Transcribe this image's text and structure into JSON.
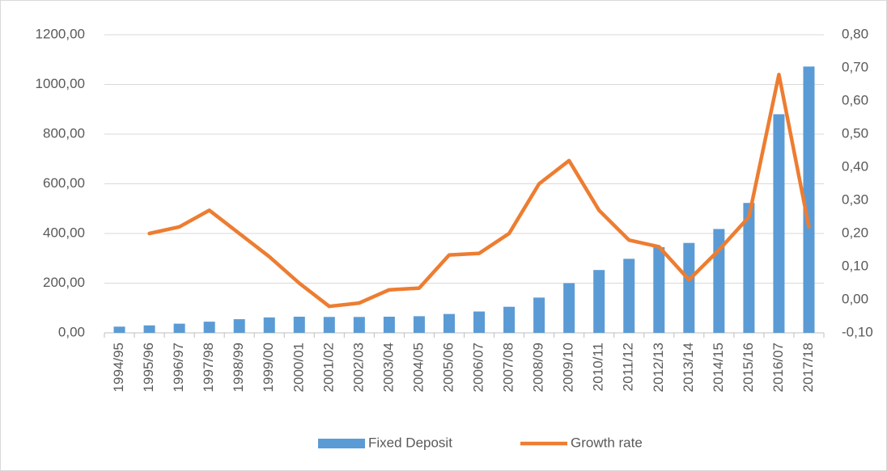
{
  "chart_data": {
    "type": "bar-line",
    "categories": [
      "1994/95",
      "1995/96",
      "1996/97",
      "1997/98",
      "1998/99",
      "1999/00",
      "2000/01",
      "2001/02",
      "2002/03",
      "2003/04",
      "2004/05",
      "2005/06",
      "2006/07",
      "2007/08",
      "2008/09",
      "2009/10",
      "2010/11",
      "2011/12",
      "2012/13",
      "2013/14",
      "2014/15",
      "2015/16",
      "2016/07",
      "2017/18"
    ],
    "series": [
      {
        "name": "Fixed Deposit",
        "type": "bar",
        "color": "#5b9bd5",
        "axis": "y",
        "values": [
          25,
          30,
          37,
          45,
          55,
          62,
          65,
          64,
          64,
          65,
          67,
          76,
          86,
          105,
          142,
          200,
          253,
          298,
          345,
          362,
          418,
          523,
          880,
          1072
        ]
      },
      {
        "name": "Growth rate",
        "type": "line",
        "color": "#ed7d31",
        "axis": "y2",
        "values": [
          null,
          0.2,
          0.22,
          0.27,
          0.2,
          0.13,
          0.05,
          -0.02,
          -0.01,
          0.03,
          0.035,
          0.135,
          0.14,
          0.2,
          0.35,
          0.42,
          0.27,
          0.18,
          0.16,
          0.06,
          0.15,
          0.25,
          0.68,
          0.22
        ]
      }
    ],
    "ylim": [
      0,
      1200
    ],
    "yticks": [
      {
        "value": 0,
        "label": "0,00"
      },
      {
        "value": 200,
        "label": "200,00"
      },
      {
        "value": 400,
        "label": "400,00"
      },
      {
        "value": 600,
        "label": "600,00"
      },
      {
        "value": 800,
        "label": "800,00"
      },
      {
        "value": 1000,
        "label": "1000,00"
      },
      {
        "value": 1200,
        "label": "1200,00"
      }
    ],
    "y2lim": [
      -0.1,
      0.8
    ],
    "y2ticks": [
      {
        "value": -0.1,
        "label": "-0,10"
      },
      {
        "value": 0,
        "label": "0,00"
      },
      {
        "value": 0.1,
        "label": "0,10"
      },
      {
        "value": 0.2,
        "label": "0,20"
      },
      {
        "value": 0.3,
        "label": "0,30"
      },
      {
        "value": 0.4,
        "label": "0,40"
      },
      {
        "value": 0.5,
        "label": "0,50"
      },
      {
        "value": 0.6,
        "label": "0,60"
      },
      {
        "value": 0.7,
        "label": "0,70"
      },
      {
        "value": 0.8,
        "label": "0,80"
      }
    ],
    "grid": true,
    "legend": "bottom"
  }
}
